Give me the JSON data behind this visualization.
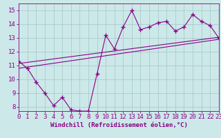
{
  "xlabel": "Windchill (Refroidissement éolien,°C)",
  "xlim": [
    0,
    23
  ],
  "ylim": [
    7.7,
    15.5
  ],
  "xticks": [
    0,
    1,
    2,
    3,
    4,
    5,
    6,
    7,
    8,
    9,
    10,
    11,
    12,
    13,
    14,
    15,
    16,
    17,
    18,
    19,
    20,
    21,
    22,
    23
  ],
  "yticks": [
    8,
    9,
    10,
    11,
    12,
    13,
    14,
    15
  ],
  "bg_color": "#cce8e8",
  "line_color": "#880088",
  "grid_color": "#aacccc",
  "line1_x": [
    0,
    1,
    2,
    3,
    4,
    5,
    6,
    7,
    8,
    9,
    10,
    11,
    12,
    13,
    14,
    15,
    16,
    17,
    18,
    19,
    20,
    21,
    22,
    23
  ],
  "line1_y": [
    11.3,
    10.8,
    9.8,
    9.0,
    8.1,
    8.7,
    7.8,
    7.7,
    7.7,
    10.4,
    13.2,
    12.2,
    13.8,
    15.0,
    13.6,
    13.8,
    14.1,
    14.2,
    13.5,
    13.8,
    14.7,
    14.2,
    13.9,
    13.0
  ],
  "line2_x": [
    0,
    23
  ],
  "line2_y": [
    10.8,
    12.9
  ],
  "line3_x": [
    0,
    23
  ],
  "line3_y": [
    11.15,
    13.05
  ],
  "tick_fontsize": 6.5,
  "xlabel_fontsize": 6.5
}
